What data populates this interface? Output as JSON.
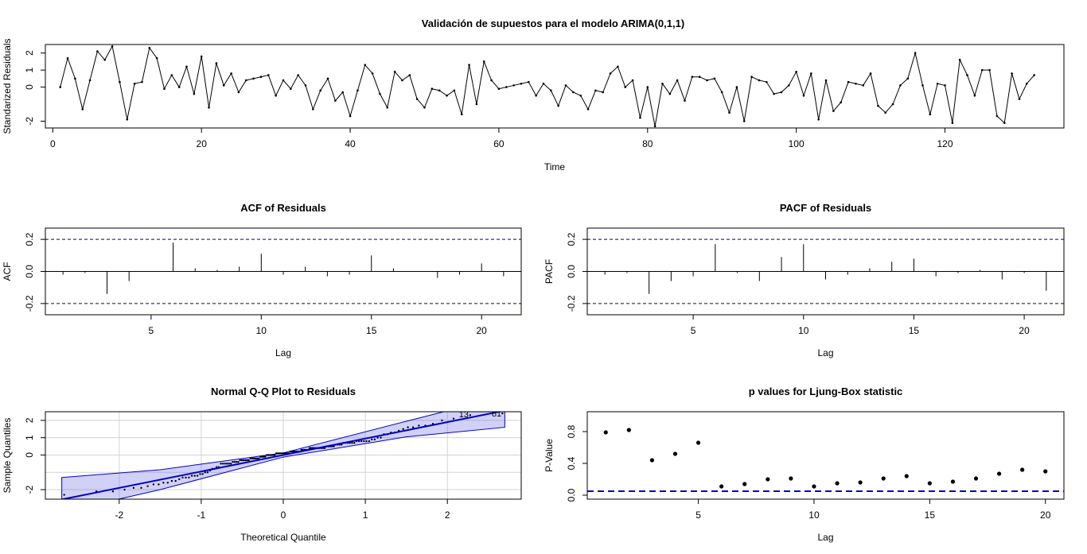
{
  "figure": {
    "title": "Validación de supuestos para el modelo ARIMA(0,1,1)"
  },
  "chart_data": [
    {
      "id": "residuals",
      "type": "line",
      "title": "",
      "xlabel": "Time",
      "ylabel": "Standarized Residuals",
      "xlim": [
        -1,
        136
      ],
      "ylim": [
        -2.4,
        2.5
      ],
      "xticks": [
        0,
        20,
        40,
        60,
        80,
        100,
        120
      ],
      "yticks": [
        -2,
        0,
        1,
        2
      ],
      "ytick_labels": [
        "-2",
        "0",
        "1",
        "2"
      ],
      "x": [
        1,
        2,
        3,
        4,
        5,
        6,
        7,
        8,
        9,
        10,
        11,
        12,
        13,
        14,
        15,
        16,
        17,
        18,
        19,
        20,
        21,
        22,
        23,
        24,
        25,
        26,
        27,
        28,
        29,
        30,
        31,
        32,
        33,
        34,
        35,
        36,
        37,
        38,
        39,
        40,
        41,
        42,
        43,
        44,
        45,
        46,
        47,
        48,
        49,
        50,
        51,
        52,
        53,
        54,
        55,
        56,
        57,
        58,
        59,
        60,
        61,
        62,
        63,
        64,
        65,
        66,
        67,
        68,
        69,
        70,
        71,
        72,
        73,
        74,
        75,
        76,
        77,
        78,
        79,
        80,
        81,
        82,
        83,
        84,
        85,
        86,
        87,
        88,
        89,
        90,
        91,
        92,
        93,
        94,
        95,
        96,
        97,
        98,
        99,
        100,
        101,
        102,
        103,
        104,
        105,
        106,
        107,
        108,
        109,
        110,
        111,
        112,
        113,
        114,
        115,
        116,
        117,
        118,
        119,
        120,
        121,
        122,
        123,
        124,
        125,
        126,
        127,
        128,
        129,
        130,
        131,
        132
      ],
      "y": [
        0.0,
        1.7,
        0.5,
        -1.3,
        0.4,
        2.1,
        1.6,
        2.4,
        0.3,
        -1.9,
        0.2,
        0.3,
        2.3,
        1.7,
        -0.1,
        0.7,
        0.0,
        1.2,
        -0.4,
        1.8,
        -1.2,
        1.4,
        0.1,
        0.8,
        -0.3,
        0.4,
        0.5,
        0.6,
        0.7,
        -0.5,
        0.4,
        -0.1,
        0.7,
        0.1,
        -1.3,
        -0.2,
        0.5,
        -0.8,
        -0.3,
        -1.7,
        -0.2,
        1.3,
        0.8,
        -0.4,
        -1.2,
        0.9,
        0.4,
        0.7,
        -0.7,
        -1.2,
        -0.1,
        -0.2,
        -0.5,
        -0.2,
        -1.6,
        1.3,
        -1.0,
        1.5,
        0.4,
        -0.1,
        0.0,
        0.1,
        0.2,
        0.3,
        -0.5,
        0.2,
        -0.2,
        -1.1,
        0.1,
        -0.3,
        -0.5,
        -1.3,
        -0.2,
        -0.3,
        0.8,
        1.2,
        0.0,
        0.4,
        -1.8,
        0.0,
        -2.3,
        0.2,
        -0.4,
        0.4,
        -0.8,
        0.6,
        0.6,
        0.4,
        0.5,
        -0.3,
        -1.5,
        0.0,
        -2.0,
        0.6,
        0.4,
        0.3,
        -0.4,
        -0.3,
        0.1,
        0.9,
        -0.5,
        0.8,
        -1.9,
        0.4,
        -1.4,
        -0.9,
        0.3,
        0.2,
        0.1,
        0.8,
        -1.1,
        -1.5,
        -1.0,
        0.1,
        0.5,
        2.0,
        0.1,
        -1.6,
        0.2,
        0.1,
        -2.1,
        1.6,
        0.7,
        -0.5,
        1.0,
        1.0,
        -1.7,
        -2.1,
        0.8,
        -0.7,
        0.2,
        0.7
      ]
    },
    {
      "id": "acf",
      "type": "bar",
      "title": "ACF of Residuals",
      "xlabel": "Lag",
      "ylabel": "ACF",
      "xlim": [
        0.2,
        21.8
      ],
      "ylim": [
        -0.27,
        0.27
      ],
      "xticks": [
        5,
        10,
        15,
        20
      ],
      "yticks": [
        -0.2,
        0.0,
        0.2
      ],
      "ytick_labels": [
        "-0.2",
        "0.0",
        "0.2"
      ],
      "conf_limits": [
        -0.2,
        0.2
      ],
      "lags": [
        1,
        2,
        3,
        4,
        5,
        6,
        7,
        8,
        9,
        10,
        11,
        12,
        13,
        14,
        15,
        16,
        17,
        18,
        19,
        20,
        21
      ],
      "values": [
        -0.02,
        -0.01,
        -0.14,
        -0.06,
        0.0,
        0.18,
        0.02,
        0.01,
        0.03,
        0.11,
        -0.02,
        0.03,
        -0.03,
        -0.02,
        0.1,
        0.02,
        0.0,
        -0.04,
        -0.02,
        0.05,
        -0.03
      ]
    },
    {
      "id": "pacf",
      "type": "bar",
      "title": "PACF of Residuals",
      "xlabel": "Lag",
      "ylabel": "PACF",
      "xlim": [
        0.2,
        21.8
      ],
      "ylim": [
        -0.27,
        0.27
      ],
      "xticks": [
        5,
        10,
        15,
        20
      ],
      "yticks": [
        -0.2,
        0.0,
        0.2
      ],
      "ytick_labels": [
        "-0.2",
        "0.0",
        "0.2"
      ],
      "conf_limits": [
        -0.2,
        0.2
      ],
      "lags": [
        1,
        2,
        3,
        4,
        5,
        6,
        7,
        8,
        9,
        10,
        11,
        12,
        13,
        14,
        15,
        16,
        17,
        18,
        19,
        20,
        21
      ],
      "values": [
        -0.02,
        -0.01,
        -0.14,
        -0.06,
        -0.03,
        0.17,
        -0.01,
        -0.06,
        0.09,
        0.17,
        -0.05,
        -0.02,
        0.02,
        0.06,
        0.08,
        -0.03,
        -0.01,
        0.01,
        -0.05,
        -0.01,
        -0.12
      ]
    },
    {
      "id": "qq",
      "type": "scatter",
      "title": "Normal Q-Q Plot to Residuals",
      "xlabel": "Theoretical Quantile",
      "ylabel": "Sample Quantiles",
      "xlim": [
        -2.9,
        2.9
      ],
      "ylim": [
        -2.55,
        2.5
      ],
      "xticks": [
        -2,
        -1,
        0,
        1,
        2
      ],
      "yticks": [
        -2,
        0,
        1,
        2
      ],
      "ytick_labels": [
        "-2",
        "0",
        "1",
        "2"
      ],
      "reference_line": {
        "intercept": 0.0,
        "slope": 0.95
      },
      "band": {
        "x": [
          -2.7,
          -1.5,
          0.0,
          1.5,
          2.7
        ],
        "lower": [
          -3.3,
          -2.0,
          -0.12,
          1.05,
          1.6
        ],
        "upper": [
          -1.3,
          -0.85,
          0.12,
          1.95,
          3.4
        ]
      },
      "point_labels": [
        "13",
        "81"
      ],
      "point_label_x": [
        2.2,
        2.6
      ],
      "point_label_y": [
        2.4,
        2.45
      ]
    },
    {
      "id": "ljungbox",
      "type": "scatter",
      "title": "p values for Ljung-Box statistic",
      "xlabel": "Lag",
      "ylabel": "P-Value",
      "xlim": [
        0.2,
        20.8
      ],
      "ylim": [
        -0.05,
        1.05
      ],
      "xticks": [
        5,
        10,
        15,
        20
      ],
      "yticks": [
        0.0,
        0.4,
        0.8
      ],
      "ytick_labels": [
        "0.0",
        "0.4",
        "0.8"
      ],
      "threshold": 0.05,
      "lags": [
        1,
        2,
        3,
        4,
        5,
        6,
        7,
        8,
        9,
        10,
        11,
        12,
        13,
        14,
        15,
        16,
        17,
        18,
        19,
        20
      ],
      "values": [
        0.79,
        0.82,
        0.44,
        0.52,
        0.66,
        0.11,
        0.14,
        0.2,
        0.21,
        0.11,
        0.15,
        0.16,
        0.21,
        0.24,
        0.15,
        0.17,
        0.21,
        0.27,
        0.32,
        0.3
      ]
    }
  ]
}
